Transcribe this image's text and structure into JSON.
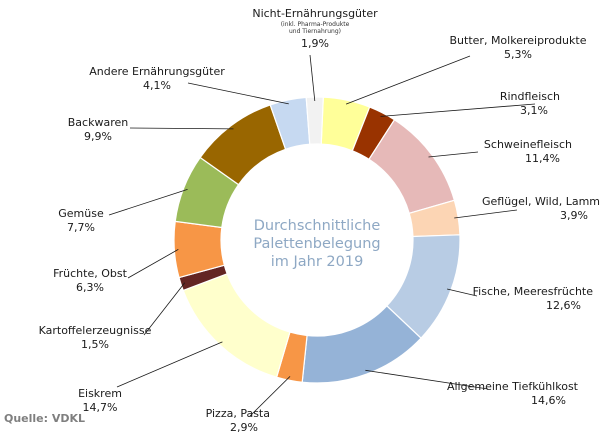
{
  "chart_data": {
    "type": "pie",
    "variant": "donut",
    "title": "Durchschnittliche Palettenbelegung im Jahr 2019",
    "title_lines": [
      "Durchschnittliche",
      "Palettenbelegung",
      "im Jahr 2019"
    ],
    "legend": "none",
    "slices": [
      {
        "label": "Butter, Molkereiprodukte",
        "value": 5.3,
        "text": "5,3%",
        "color": "#ffff99"
      },
      {
        "label": "Rindfleisch",
        "value": 3.1,
        "text": "3,1%",
        "color": "#993300"
      },
      {
        "label": "Schweinefleisch",
        "value": 11.4,
        "text": "11,4%",
        "color": "#e6b9b8"
      },
      {
        "label": "Geflügel, Wild, Lamm",
        "value": 3.9,
        "text": "3,9%",
        "color": "#fcd5b4"
      },
      {
        "label": "Fische, Meeresfrüchte",
        "value": 12.6,
        "text": "12,6%",
        "color": "#b8cce4"
      },
      {
        "label": "Allgemeine Tiefkühlkost",
        "value": 14.6,
        "text": "14,6%",
        "color": "#95b3d7"
      },
      {
        "label": "Pizza, Pasta",
        "value": 2.9,
        "text": "2,9%",
        "color": "#f79646"
      },
      {
        "label": "Eiskrem",
        "value": 14.7,
        "text": "14,7%",
        "color": "#ffffcc"
      },
      {
        "label": "Kartoffelerzeugnisse",
        "value": 1.5,
        "text": "1,5%",
        "color": "#632523"
      },
      {
        "label": "Früchte, Obst",
        "value": 6.3,
        "text": "6,3%",
        "color": "#f79646"
      },
      {
        "label": "Gemüse",
        "value": 7.7,
        "text": "7,7%",
        "color": "#9bbb59"
      },
      {
        "label": "Backwaren",
        "value": 9.9,
        "text": "9,9%",
        "color": "#996600"
      },
      {
        "label": "Andere Ernährungsgüter",
        "value": 4.1,
        "text": "4,1%",
        "color": "#c6d9f1"
      },
      {
        "label": "Nicht-Ernährungsgüter",
        "sublabel": "(inkl. Pharma-Produkte und Tiernahrung)",
        "value": 1.9,
        "text": "1,9%",
        "color": "#f2f2f2"
      }
    ]
  },
  "source": "Quelle: VDKL"
}
